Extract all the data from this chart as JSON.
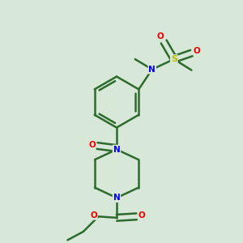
{
  "background_color": "#d8e8d8",
  "bond_color": "#2d6a2d",
  "atom_colors": {
    "N": "#0000ee",
    "O": "#ee0000",
    "S": "#bbbb00",
    "C": "#2d6a2d"
  },
  "figsize": [
    3.0,
    3.0
  ],
  "dpi": 100,
  "xlim": [
    0,
    10
  ],
  "ylim": [
    0,
    10
  ]
}
